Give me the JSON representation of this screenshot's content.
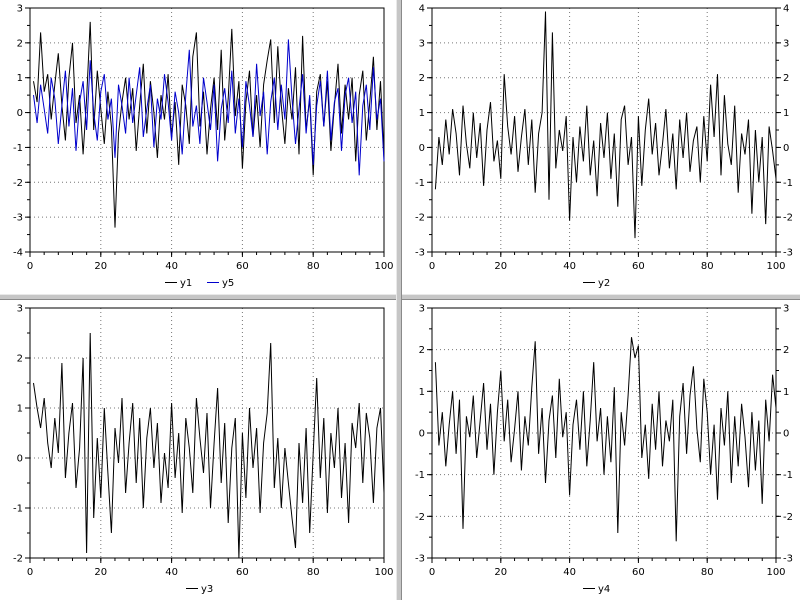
{
  "window": {
    "background": "#ffffff",
    "separator_color": "#c6c6c6",
    "grid_dot_color": "#777777",
    "axis_color": "#000000"
  },
  "chart_data": [
    {
      "type": "line",
      "position": "top-left",
      "title": "",
      "xlabel": "",
      "ylabel": "",
      "grid": true,
      "legend_position": "below",
      "right_labels": false,
      "xlim": [
        0,
        100
      ],
      "ylim": [
        -4,
        3
      ],
      "xticks": [
        0,
        20,
        40,
        60,
        80,
        100
      ],
      "yticks": [
        -4,
        -3,
        -2,
        -1,
        0,
        1,
        2,
        3
      ],
      "x_minor_step": 4,
      "y_minor_step": 0.5,
      "x_start": 1,
      "x_step": 1,
      "series": [
        {
          "name": "y1",
          "color": "#000000",
          "values": [
            0.9,
            0.3,
            2.3,
            0.6,
            1.1,
            -0.2,
            0.8,
            1.7,
            0.2,
            -0.8,
            1.0,
            2.0,
            -0.3,
            0.5,
            -1.2,
            0.4,
            2.6,
            -0.5,
            1.2,
            0.1,
            -0.9,
            0.6,
            -0.4,
            -3.3,
            -0.6,
            0.3,
            1.0,
            -0.2,
            0.7,
            -1.1,
            0.2,
            1.4,
            -0.6,
            0.9,
            0.0,
            -1.3,
            0.5,
            -0.2,
            1.1,
            -0.7,
            0.3,
            -1.5,
            0.8,
            0.2,
            -0.9,
            1.6,
            2.3,
            -0.4,
            0.6,
            -1.2,
            0.1,
            1.0,
            -0.5,
            1.8,
            -0.8,
            0.4,
            2.4,
            -0.1,
            0.9,
            -1.6,
            0.3,
            1.2,
            -0.7,
            0.5,
            -1.0,
            0.8,
            1.5,
            2.1,
            -0.3,
            1.9,
            0.2,
            -0.9,
            0.7,
            -0.2,
            1.3,
            -1.2,
            2.2,
            -0.5,
            0.4,
            -1.8,
            0.6,
            1.1,
            -0.4,
            0.9,
            -1.1,
            0.2,
            1.4,
            -0.6,
            0.8,
            -0.2,
            1.0,
            -1.4,
            0.5,
            1.2,
            -0.8,
            0.3,
            1.6,
            -0.5,
            0.9,
            -1.3
          ]
        },
        {
          "name": "y5",
          "color": "#0000cc",
          "values": [
            0.5,
            -0.3,
            0.8,
            0.1,
            -0.6,
            1.0,
            0.4,
            -0.9,
            0.2,
            1.2,
            -0.4,
            0.7,
            -1.1,
            0.3,
            0.9,
            -0.5,
            1.5,
            0.0,
            -0.8,
            0.6,
            1.1,
            -0.2,
            0.4,
            -1.3,
            0.8,
            0.2,
            -0.6,
            1.0,
            -0.3,
            0.5,
            1.3,
            -0.7,
            0.1,
            0.8,
            -1.0,
            0.4,
            -0.2,
            1.1,
            0.3,
            -0.8,
            0.6,
            0.0,
            -1.2,
            0.5,
            1.8,
            -0.4,
            0.2,
            -0.9,
            1.0,
            0.3,
            -0.5,
            0.8,
            -1.4,
            0.1,
            0.7,
            -0.3,
            1.2,
            -0.6,
            0.4,
            -1.0,
            0.9,
            0.2,
            -0.7,
            1.4,
            -0.1,
            0.6,
            -1.2,
            0.3,
            1.0,
            -0.5,
            0.8,
            -0.2,
            2.1,
            0.4,
            -0.9,
            0.1,
            1.1,
            -0.6,
            0.5,
            -1.5,
            0.2,
            0.9,
            -0.4,
            1.2,
            -0.8,
            0.3,
            0.7,
            -1.1,
            0.5,
            1.0,
            -0.3,
            0.6,
            -1.8,
            0.2,
            0.8,
            -0.5,
            1.3,
            -0.2,
            0.4,
            -1.4
          ]
        }
      ]
    },
    {
      "type": "line",
      "position": "top-right",
      "title": "",
      "xlabel": "",
      "ylabel": "",
      "grid": true,
      "legend_position": "below",
      "right_labels": true,
      "xlim": [
        0,
        100
      ],
      "ylim": [
        -3,
        4
      ],
      "xticks": [
        0,
        20,
        40,
        60,
        80,
        100
      ],
      "yticks": [
        -3,
        -2,
        -1,
        0,
        1,
        2,
        3,
        4
      ],
      "x_minor_step": 4,
      "y_minor_step": 0.5,
      "x_start": 1,
      "x_step": 1,
      "series": [
        {
          "name": "y2",
          "color": "#000000",
          "values": [
            -1.2,
            0.3,
            -0.5,
            0.8,
            -0.2,
            1.1,
            0.4,
            -0.8,
            1.2,
            0.1,
            -0.6,
            1.0,
            -0.3,
            0.7,
            -1.1,
            0.5,
            1.3,
            -0.4,
            0.2,
            -0.9,
            2.1,
            0.6,
            -0.2,
            0.9,
            -0.7,
            0.3,
            1.1,
            -0.5,
            0.8,
            -1.3,
            0.4,
            1.0,
            3.9,
            -1.5,
            3.3,
            -0.6,
            0.5,
            -0.1,
            0.9,
            -2.1,
            0.3,
            -1.0,
            0.6,
            -0.4,
            1.2,
            -0.8,
            0.2,
            -1.4,
            0.7,
            -0.3,
            1.0,
            -0.9,
            0.4,
            -1.7,
            0.8,
            1.2,
            -0.5,
            0.3,
            -2.6,
            0.9,
            -1.1,
            0.5,
            1.4,
            -0.2,
            0.7,
            -0.8,
            0.1,
            1.1,
            -0.6,
            0.4,
            -1.2,
            0.8,
            -0.3,
            1.0,
            -0.7,
            0.2,
            0.6,
            -1.0,
            0.9,
            -0.4,
            1.8,
            0.3,
            2.1,
            -0.8,
            1.5,
            0.1,
            -0.5,
            1.2,
            -1.3,
            0.4,
            -0.2,
            0.8,
            -1.9,
            0.5,
            -1.0,
            0.3,
            -2.2,
            0.6,
            -0.1,
            -0.9
          ]
        }
      ]
    },
    {
      "type": "line",
      "position": "bottom-left",
      "title": "",
      "xlabel": "",
      "ylabel": "",
      "grid": true,
      "legend_position": "below",
      "right_labels": false,
      "xlim": [
        0,
        100
      ],
      "ylim": [
        -2,
        3
      ],
      "xticks": [
        0,
        20,
        40,
        60,
        80,
        100
      ],
      "yticks": [
        -2,
        -1,
        0,
        1,
        2,
        3
      ],
      "x_minor_step": 4,
      "y_minor_step": 0.5,
      "x_start": 1,
      "x_step": 1,
      "series": [
        {
          "name": "y3",
          "color": "#000000",
          "values": [
            1.5,
            1.0,
            0.6,
            1.2,
            0.3,
            -0.2,
            0.8,
            0.1,
            1.9,
            -0.4,
            0.5,
            1.1,
            -0.6,
            0.2,
            2.0,
            -1.9,
            2.5,
            -1.2,
            0.4,
            -0.8,
            1.0,
            -0.3,
            -1.5,
            0.6,
            -0.1,
            1.2,
            -0.7,
            0.3,
            1.1,
            -0.5,
            0.8,
            -1.0,
            0.4,
            1.0,
            -0.2,
            0.7,
            -0.9,
            0.1,
            -0.6,
            1.1,
            -0.4,
            0.5,
            -1.1,
            0.8,
            0.2,
            -0.7,
            1.2,
            0.4,
            -0.3,
            0.9,
            -1.0,
            0.3,
            1.4,
            -0.5,
            0.7,
            -1.3,
            0.2,
            0.8,
            -2.0,
            0.5,
            -0.8,
            1.0,
            -0.2,
            0.6,
            -1.1,
            0.3,
            0.9,
            2.3,
            -0.6,
            0.4,
            -1.0,
            0.2,
            -0.5,
            -1.2,
            -1.8,
            0.3,
            -0.9,
            0.6,
            -1.5,
            0.1,
            1.6,
            -0.4,
            0.8,
            -1.1,
            0.5,
            -0.2,
            1.0,
            -0.8,
            0.3,
            -1.3,
            0.7,
            0.2,
            1.1,
            -0.5,
            0.9,
            0.4,
            -0.9,
            0.6,
            1.0,
            -0.7
          ]
        }
      ]
    },
    {
      "type": "line",
      "position": "bottom-right",
      "title": "",
      "xlabel": "",
      "ylabel": "",
      "grid": true,
      "legend_position": "below",
      "right_labels": true,
      "xlim": [
        0,
        100
      ],
      "ylim": [
        -3,
        3
      ],
      "xticks": [
        0,
        20,
        40,
        60,
        80,
        100
      ],
      "yticks": [
        -3,
        -2,
        -1,
        0,
        1,
        2,
        3
      ],
      "x_minor_step": 4,
      "y_minor_step": 0.5,
      "x_start": 1,
      "x_step": 1,
      "series": [
        {
          "name": "y4",
          "color": "#000000",
          "values": [
            1.7,
            -0.3,
            0.5,
            -0.8,
            0.2,
            1.0,
            -0.5,
            0.8,
            -2.3,
            0.4,
            -0.1,
            0.9,
            -0.6,
            0.3,
            1.2,
            -0.4,
            0.7,
            -1.0,
            0.5,
            1.5,
            -0.2,
            0.8,
            -0.7,
            0.1,
            1.0,
            -0.9,
            0.4,
            -0.3,
            1.1,
            2.2,
            -0.5,
            0.6,
            -1.2,
            0.3,
            0.9,
            -0.6,
            1.3,
            -0.1,
            0.5,
            -1.5,
            0.2,
            0.8,
            -0.4,
            1.0,
            -0.8,
            0.3,
            1.7,
            -0.2,
            0.6,
            -1.0,
            0.4,
            -0.7,
            1.1,
            -2.4,
            0.5,
            -0.3,
            0.9,
            2.3,
            1.8,
            2.1,
            -0.6,
            0.2,
            -1.1,
            0.7,
            -0.4,
            1.0,
            -0.8,
            0.3,
            -0.2,
            0.8,
            -2.6,
            0.4,
            1.2,
            -0.5,
            0.9,
            1.6,
            0.1,
            -0.7,
            1.3,
            0.5,
            -1.0,
            0.2,
            -1.6,
            0.6,
            -0.3,
            1.0,
            -1.2,
            0.4,
            -0.8,
            0.7,
            -0.1,
            -1.3,
            0.5,
            -0.9,
            0.3,
            -1.7,
            0.8,
            -0.2,
            1.4,
            0.6
          ]
        }
      ]
    }
  ]
}
